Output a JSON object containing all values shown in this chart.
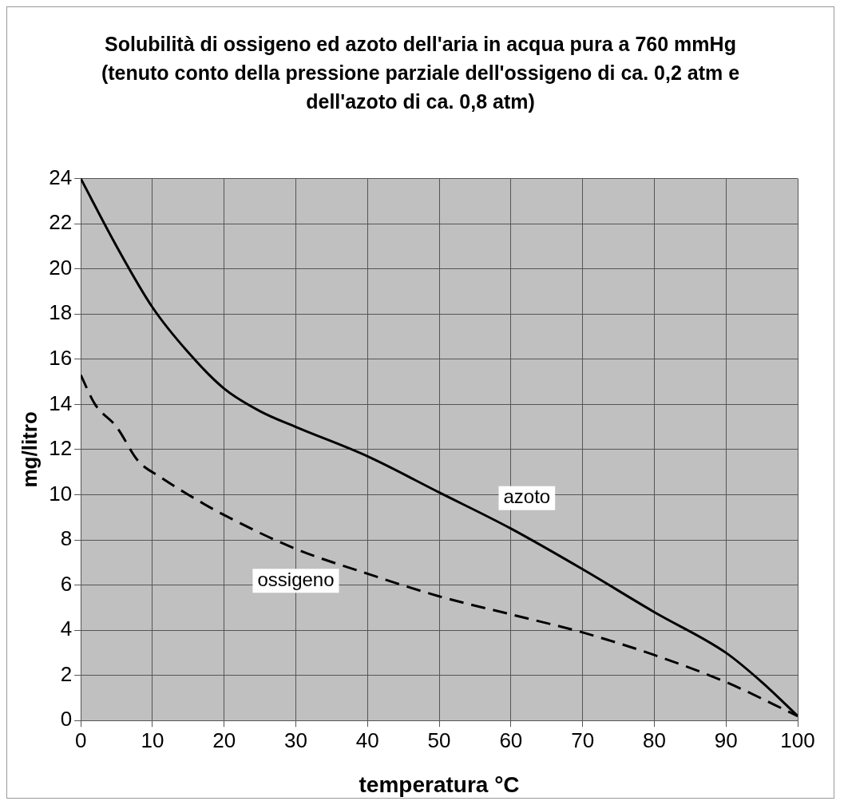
{
  "chart_data": {
    "type": "line",
    "title": "Solubilità di ossigeno ed azoto dell'aria in acqua pura a 760 mmHg (tenuto conto della pressione parziale dell'ossigeno di ca. 0,2 atm e dell'azoto di ca. 0,8 atm)",
    "xlabel": "temperatura °C",
    "ylabel": "mg/litro",
    "xlim": [
      0,
      100
    ],
    "xticks": [
      0,
      10,
      20,
      30,
      40,
      50,
      60,
      70,
      80,
      90,
      100
    ],
    "ylim": [
      0,
      24
    ],
    "yticks": [
      0,
      2,
      4,
      6,
      8,
      10,
      12,
      14,
      16,
      18,
      20,
      22,
      24
    ],
    "grid": true,
    "legend": false,
    "marker": "none",
    "series": [
      {
        "name": "azoto",
        "color": "#000000",
        "line_style": "solid",
        "x": [
          0,
          5,
          10,
          15,
          20,
          25,
          30,
          40,
          50,
          60,
          70,
          80,
          90,
          95,
          100
        ],
        "values": [
          24,
          21,
          18.3,
          16.3,
          14.7,
          13.7,
          13,
          11.7,
          10.1,
          8.5,
          6.7,
          4.8,
          3,
          1.7,
          0.2
        ]
      },
      {
        "name": "ossigeno",
        "color": "#000000",
        "line_style": "dashed",
        "x": [
          0,
          2,
          5,
          8,
          11,
          15,
          20,
          30,
          40,
          50,
          60,
          70,
          80,
          90,
          100
        ],
        "values": [
          15.3,
          14,
          13,
          11.5,
          10.8,
          10,
          9.1,
          7.6,
          6.5,
          5.5,
          4.7,
          3.9,
          2.9,
          1.7,
          0.2
        ]
      }
    ]
  }
}
